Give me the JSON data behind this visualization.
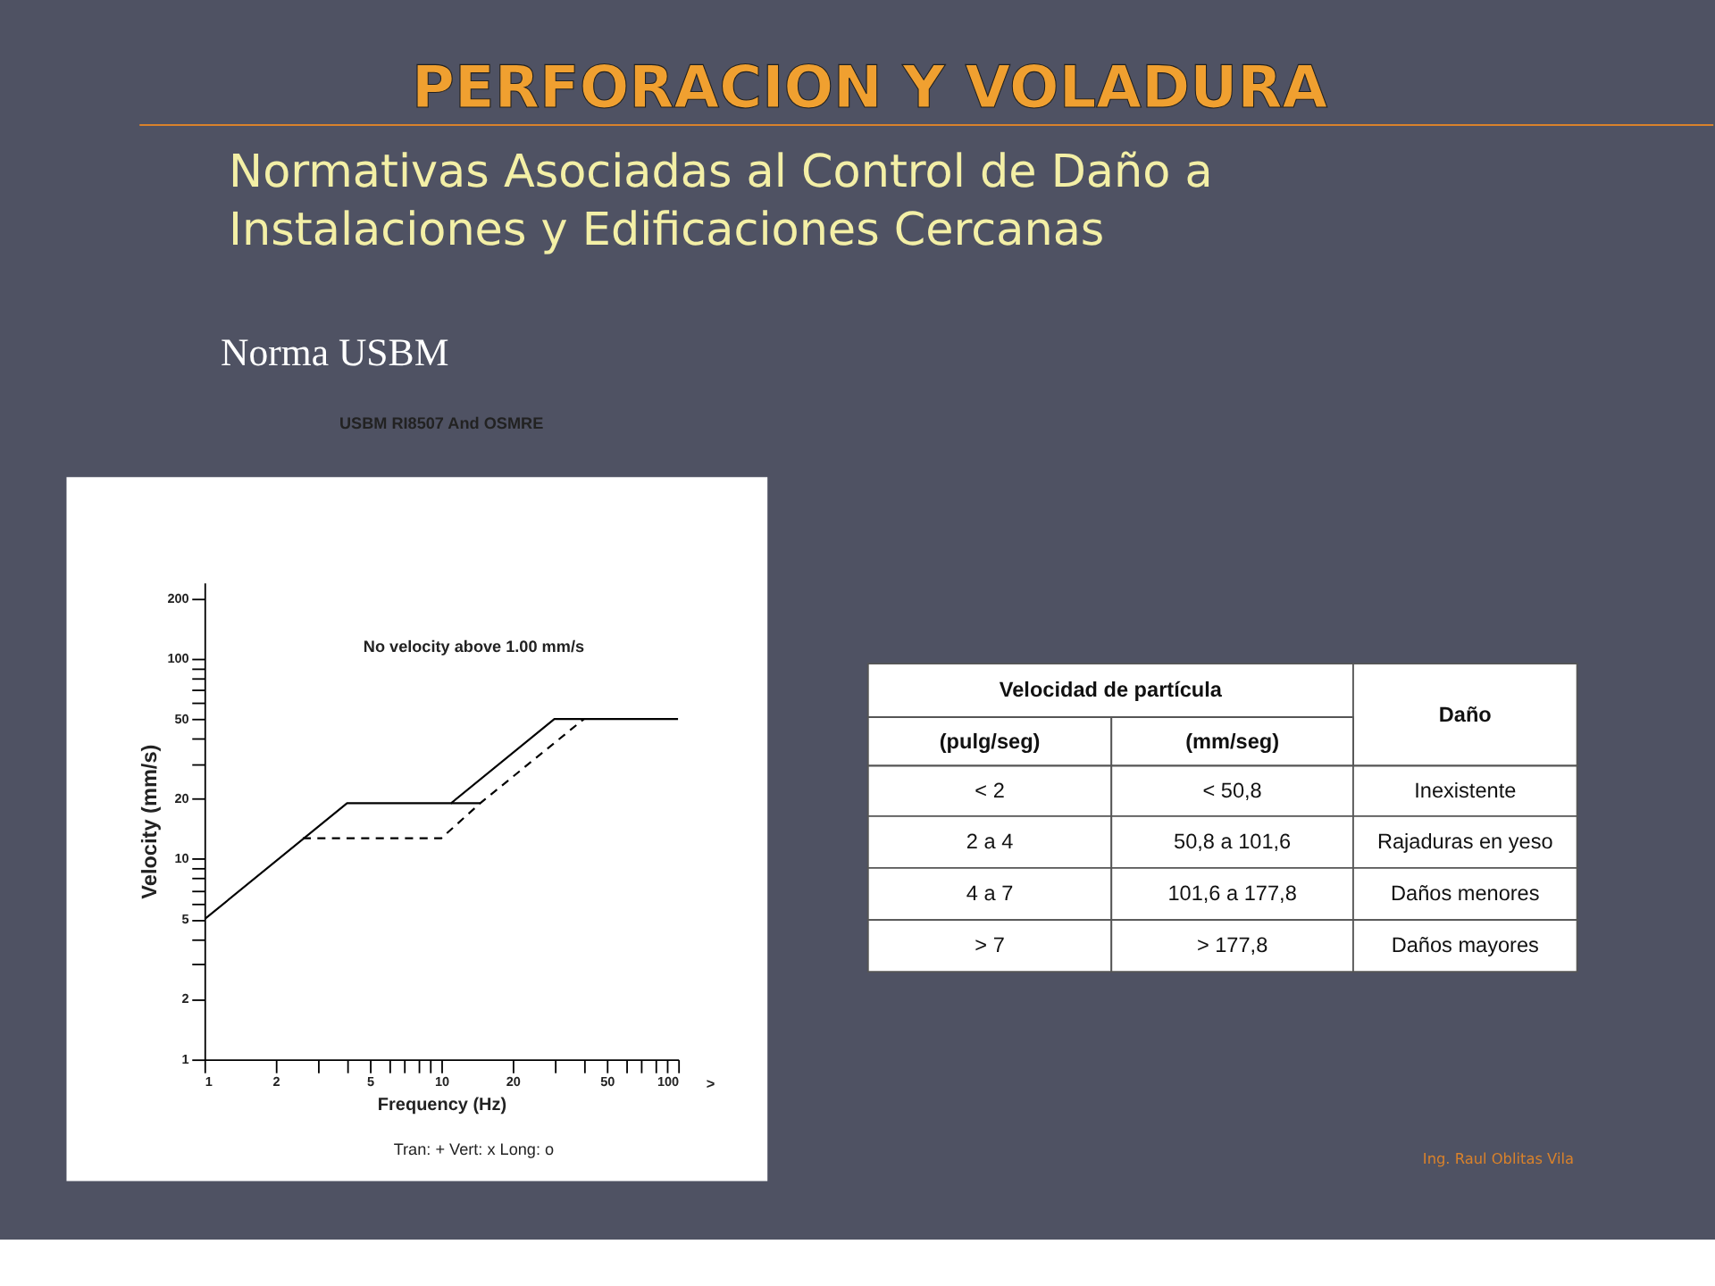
{
  "chart_data": [
    {
      "type": "other",
      "title": "PERFORACION Y VOLADURA",
      "subtitle": "Normativas Asociadas al Control de Daño a Instalaciones y Edificaciones Cercanas",
      "annotations": [
        "Norma USBM",
        "Ing. Raul Oblitas Vila"
      ]
    },
    {
      "type": "line",
      "title": "USBM RI8507 And OSMRE",
      "xlabel": "Frequency (Hz)",
      "ylabel": "Velocity (mm/s)",
      "log": "xy",
      "xlim": [
        1,
        100
      ],
      "ylim": [
        1,
        240
      ],
      "xticks": [
        1,
        2,
        {
          "value": 3,
          "label": null
        },
        {
          "value": 4,
          "label": null
        },
        5,
        {
          "value": 6,
          "label": null
        },
        {
          "value": 7,
          "label": null
        },
        {
          "value": 8,
          "label": null
        },
        {
          "value": 9,
          "label": null
        },
        10,
        20,
        {
          "value": 30,
          "label": null
        },
        {
          "value": 40,
          "label": null
        },
        50,
        {
          "value": 60,
          "label": null
        },
        {
          "value": 70,
          "label": null
        },
        {
          "value": 80,
          "label": null
        },
        {
          "value": 90,
          "label": null
        },
        100
      ],
      "yticks": [
        1,
        2,
        {
          "value": 3,
          "label": null
        },
        {
          "value": 4,
          "label": null
        },
        5,
        {
          "value": 6,
          "label": null
        },
        {
          "value": 7,
          "label": null
        },
        {
          "value": 8,
          "label": null
        },
        {
          "value": 9,
          "label": null
        },
        10,
        20,
        {
          "value": 30,
          "label": null
        },
        {
          "value": 40,
          "label": null
        },
        50,
        {
          "value": 60,
          "label": null
        },
        {
          "value": 70,
          "label": null
        },
        {
          "value": 80,
          "label": null
        },
        {
          "value": 90,
          "label": null
        },
        100,
        200
      ],
      "annotations": [
        "No velocity above 1.00 mm/s",
        ">",
        "Tran: + Vert: x Long: o"
      ],
      "series": [
        {
          "color": "#000000",
          "line_style": "solid",
          "x": [
            1,
            4,
            11,
            30,
            100
          ],
          "values": [
            5,
            19,
            19,
            50,
            50
          ]
        },
        {
          "color": "#000000",
          "line_style": "solid",
          "x": [
            11,
            14.6
          ],
          "values": [
            19,
            19
          ]
        },
        {
          "color": "#000000",
          "line_style": "dashed",
          "x": [
            2.6,
            10,
            14.6,
            40
          ],
          "values": [
            12.7,
            12.7,
            19,
            50
          ]
        }
      ]
    },
    {
      "type": "other",
      "annotations": [
        "Velocidad de partícula",
        "Daño",
        "(pulg/seg)",
        "(mm/seg)",
        "<   2",
        "<   50,8",
        "Inexistente",
        "2 a 4",
        "50,8  a 101,6",
        "Rajaduras en yeso",
        "4 a 7",
        "101,6  a  177,8",
        "Daños menores",
        ">   7",
        ">   177,8",
        "Daños mayores"
      ]
    }
  ]
}
